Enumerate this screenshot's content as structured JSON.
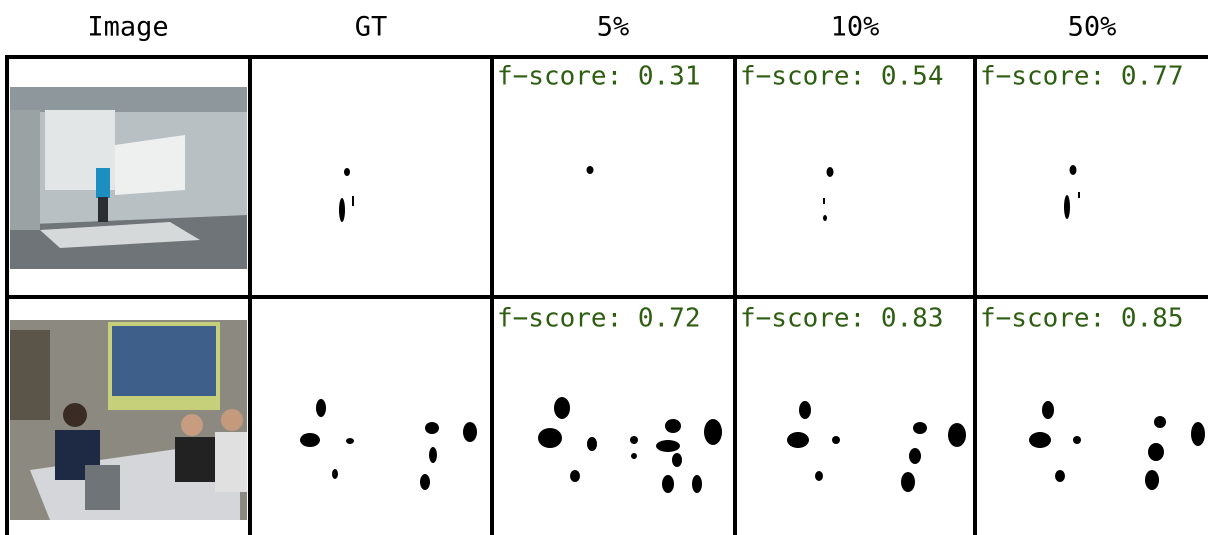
{
  "header": {
    "columns": [
      "Image",
      "GT",
      "5%",
      "10%",
      "50%"
    ]
  },
  "rows": [
    {
      "scores": [
        "f−score: 0.31",
        "f−score: 0.54",
        "f−score: 0.77"
      ]
    },
    {
      "scores": [
        "f−score: 0.72",
        "f−score: 0.83",
        "f−score: 0.85"
      ]
    }
  ]
}
